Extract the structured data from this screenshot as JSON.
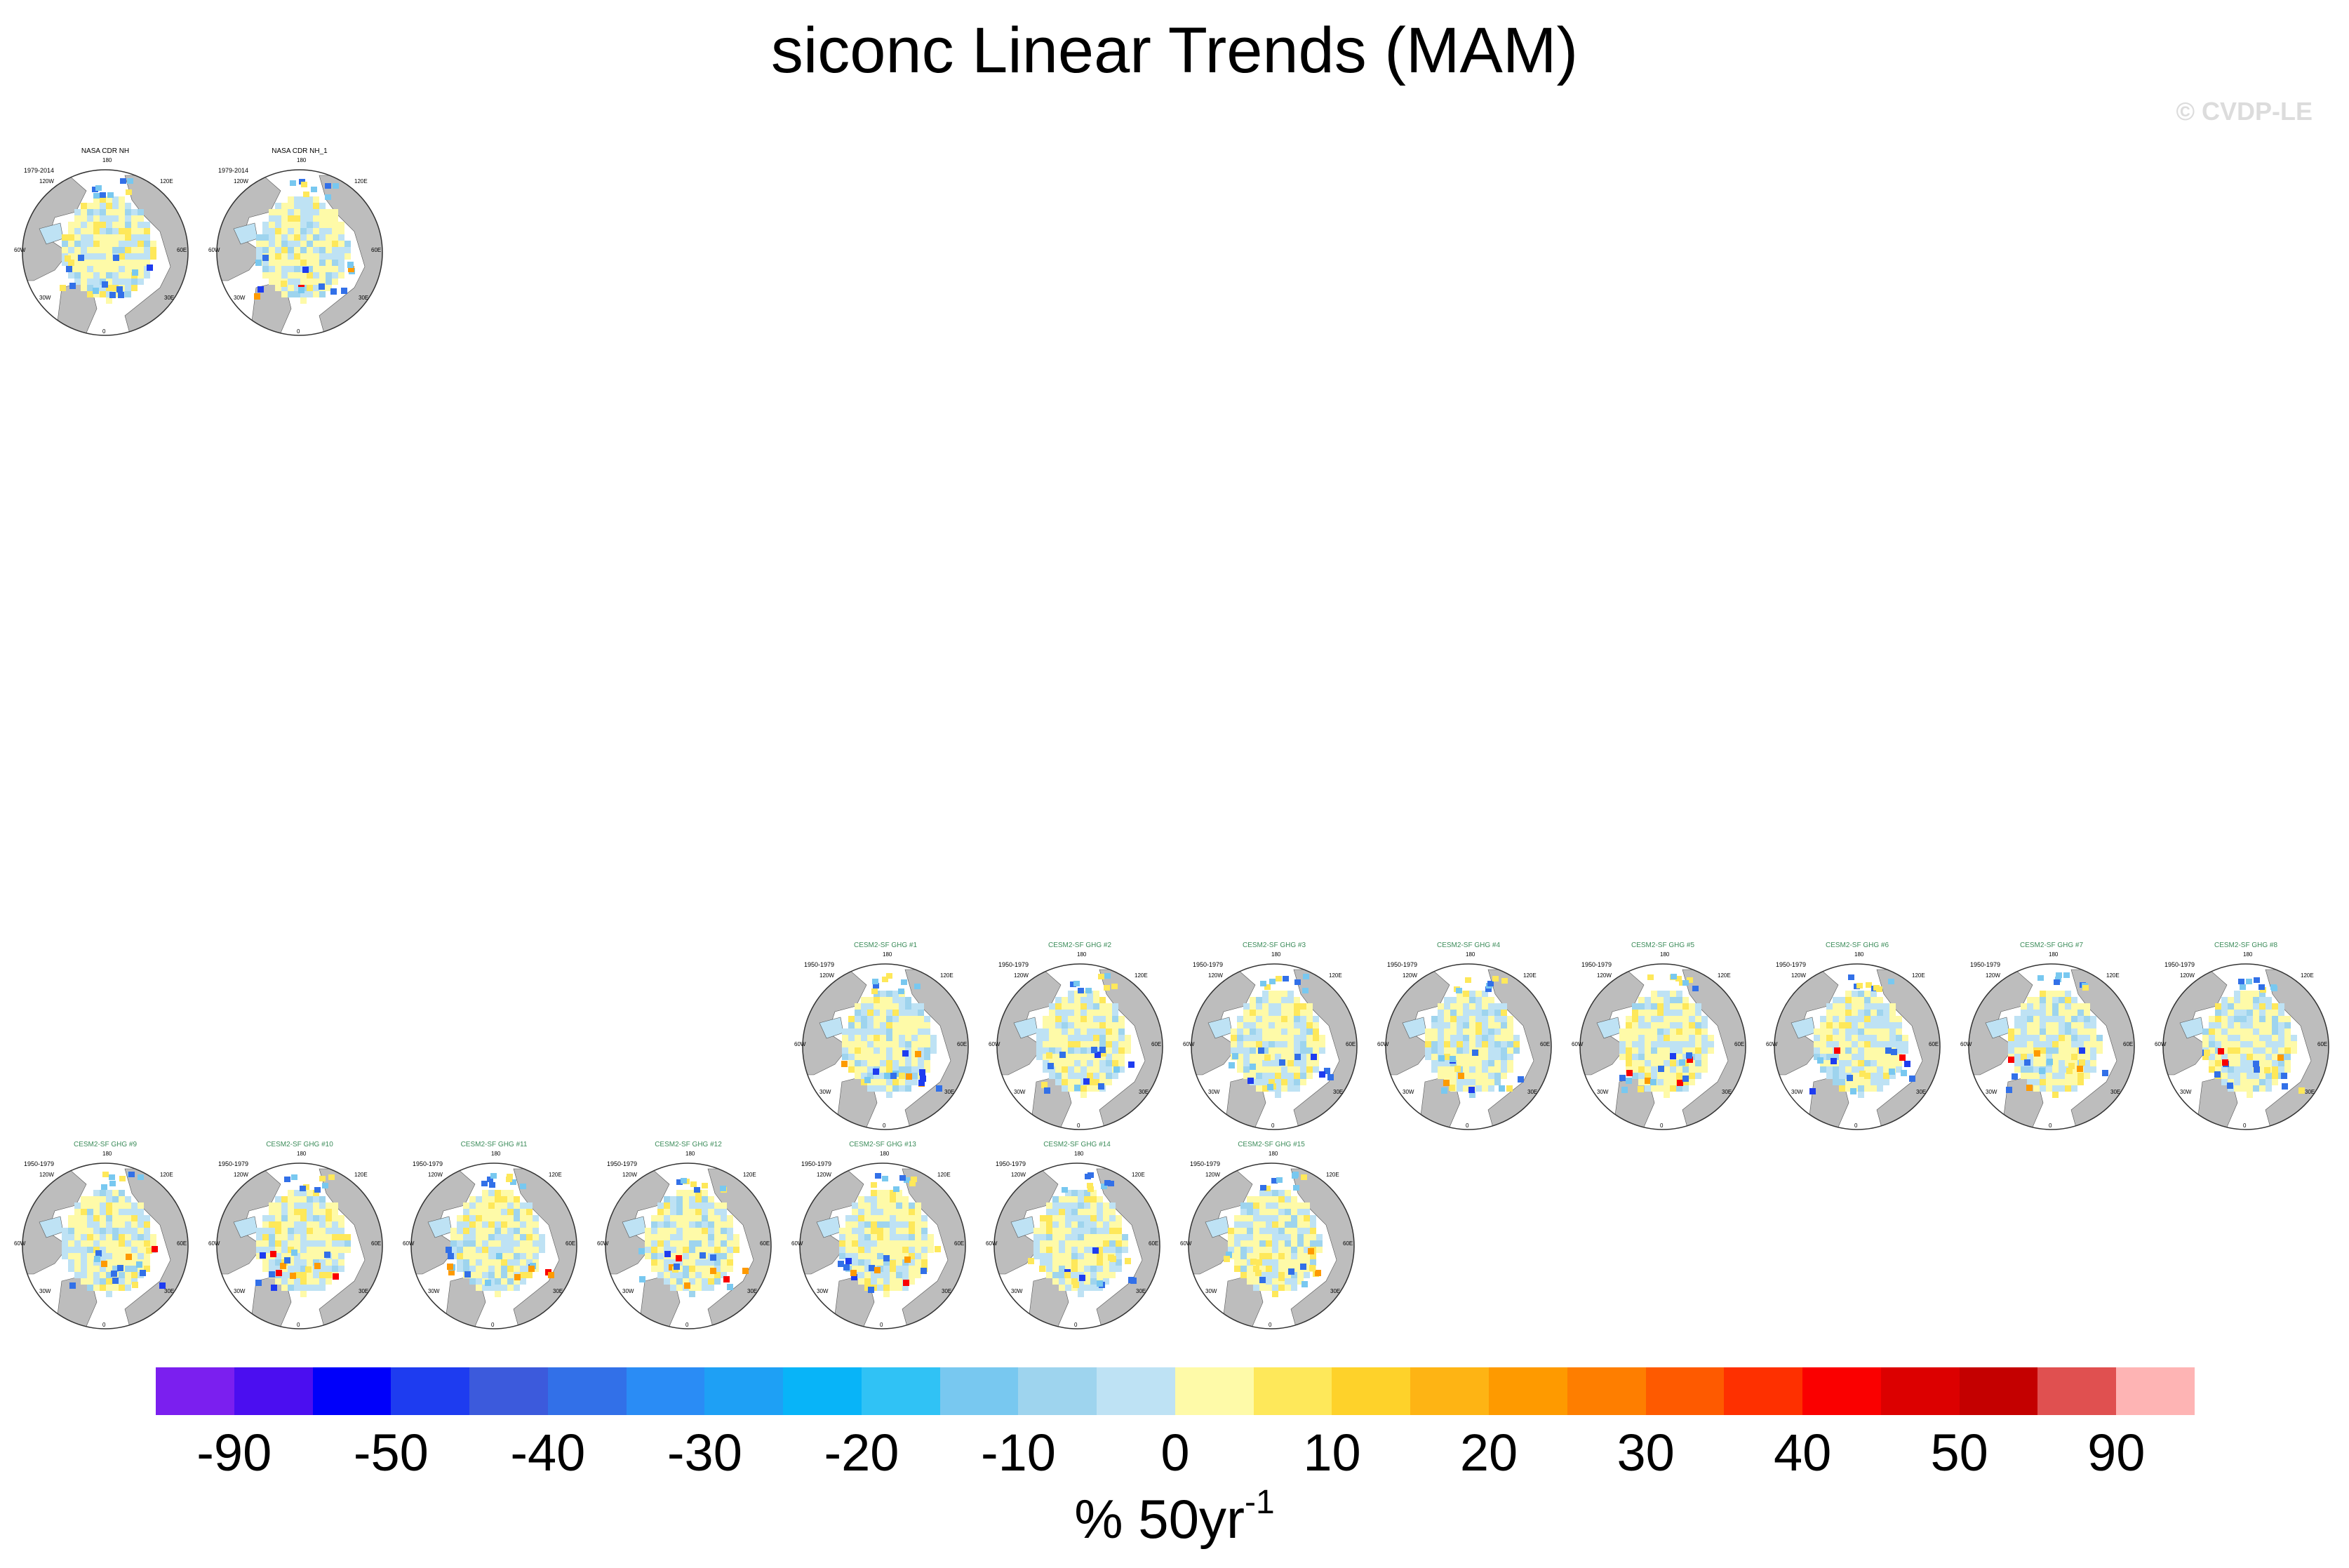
{
  "title": "siconc Linear Trends (MAM)",
  "credit": "© CVDP-LE",
  "map_labels": {
    "top": "180",
    "left_upper": "120W",
    "right_upper": "120E",
    "left_mid": "60W",
    "right_mid": "60E",
    "left_lower": "30W",
    "right_lower": "30E",
    "bottom": "0"
  },
  "observations": [
    {
      "title": "NASA CDR NH",
      "period": "1979-2014",
      "title_color": "#000000"
    },
    {
      "title": "NASA CDR NH_1",
      "period": "1979-2014",
      "title_color": "#000000"
    }
  ],
  "ensemble_row1": [
    {
      "title": "CESM2-SF GHG #1",
      "period": "1950-1979"
    },
    {
      "title": "CESM2-SF GHG #2",
      "period": "1950-1979"
    },
    {
      "title": "CESM2-SF GHG #3",
      "period": "1950-1979"
    },
    {
      "title": "CESM2-SF GHG #4",
      "period": "1950-1979"
    },
    {
      "title": "CESM2-SF GHG #5",
      "period": "1950-1979"
    },
    {
      "title": "CESM2-SF GHG #6",
      "period": "1950-1979"
    },
    {
      "title": "CESM2-SF GHG #7",
      "period": "1950-1979"
    },
    {
      "title": "CESM2-SF GHG #8",
      "period": "1950-1979"
    }
  ],
  "ensemble_row2": [
    {
      "title": "CESM2-SF GHG #9",
      "period": "1950-1979"
    },
    {
      "title": "CESM2-SF GHG #10",
      "period": "1950-1979"
    },
    {
      "title": "CESM2-SF GHG #11",
      "period": "1950-1979"
    },
    {
      "title": "CESM2-SF GHG #12",
      "period": "1950-1979"
    },
    {
      "title": "CESM2-SF GHG #13",
      "period": "1950-1979"
    },
    {
      "title": "CESM2-SF GHG #14",
      "period": "1950-1979"
    },
    {
      "title": "CESM2-SF GHG #15",
      "period": "1950-1979"
    }
  ],
  "ensemble_title_color": "#3c8c5a",
  "colorbar": {
    "colors": [
      "#7b1fef",
      "#4b0ef0",
      "#0000fa",
      "#1e3cf0",
      "#3c5adc",
      "#3270e8",
      "#2a8cf5",
      "#1ea0f5",
      "#08b4f8",
      "#30c2f5",
      "#78c8f0",
      "#9ed4ee",
      "#bee2f4",
      "#fefaa8",
      "#fee85a",
      "#fed22a",
      "#feb414",
      "#fe9a00",
      "#fe7e00",
      "#fe5a00",
      "#fe3000",
      "#fa0000",
      "#dc0000",
      "#c40000",
      "#e05050",
      "#feb4b4"
    ],
    "ticks": [
      "-90",
      "-50",
      "-40",
      "-30",
      "-20",
      "-10",
      "0",
      "10",
      "20",
      "30",
      "40",
      "50",
      "90"
    ],
    "units_base": "% 50yr",
    "units_exp": "-1"
  }
}
